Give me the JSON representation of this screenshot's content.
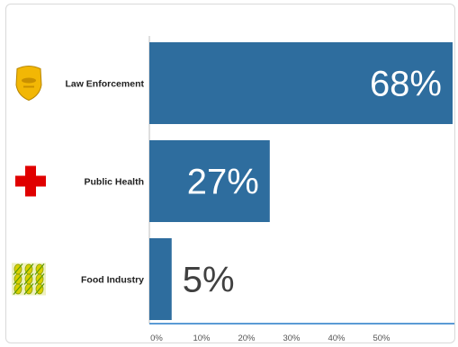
{
  "chart_data": {
    "type": "bar",
    "orientation": "horizontal",
    "categories": [
      "Law Enforcement",
      "Public Health",
      "Food Industry"
    ],
    "values": [
      68,
      27,
      5
    ],
    "data_labels": [
      "68%",
      "27%",
      "5%"
    ],
    "icons": [
      "police-badge-icon",
      "red-cross-icon",
      "corn-icon"
    ],
    "xticks": [
      "0%",
      "10%",
      "20%",
      "30%",
      "40%",
      "50%"
    ],
    "xlim": [
      0,
      68
    ],
    "grid": false,
    "colors": {
      "bar": "#2e6d9e",
      "axis": "#5b9bd5",
      "label_inside": "#ffffff",
      "label_outside": "#404040",
      "badge": "#f2b705",
      "cross": "#e00000",
      "corn": "#d8d000"
    }
  }
}
